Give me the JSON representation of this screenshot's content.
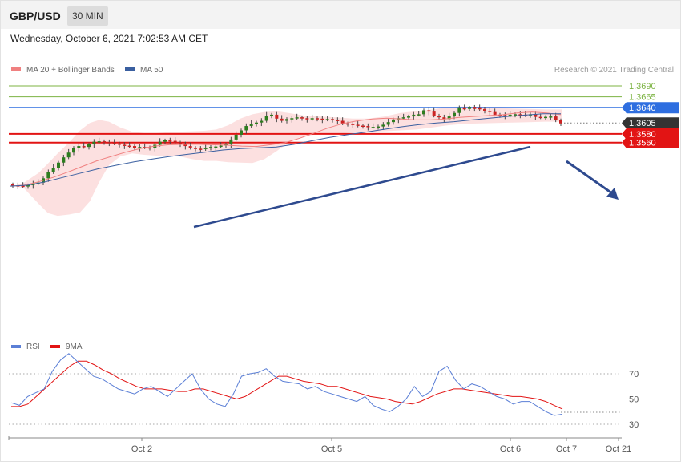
{
  "header": {
    "symbol": "GBP/USD",
    "timeframe": "30 MIN"
  },
  "datetime": "Wednesday, October 6, 2021 7:02:53 AM CET",
  "copyright": "Research © 2021 Trading Central",
  "colors": {
    "bull": "#2e7d1f",
    "bear": "#cc2222",
    "bb_fill": "#fcdada",
    "ma20": "#f08080",
    "ma50": "#3a5fa0",
    "trendline": "#2e4a8f",
    "resistance": "#2e6ee0",
    "target": "#7cb342",
    "support": "#e21414",
    "rsi": "#5b7fd6",
    "rsi_ma": "#e21414"
  },
  "chart_data": [
    {
      "type": "candlestick",
      "title": "GBP/USD",
      "timeframe": "30 MIN",
      "legend": [
        {
          "name": "MA 20 + Bollinger Bands",
          "color": "#f08080"
        },
        {
          "name": "MA 50",
          "color": "#3a5fa0"
        }
      ],
      "legend_position": "top-left",
      "x_ticks": [
        "Oct 2",
        "Oct 5",
        "Oct 6",
        "Oct 7",
        "Oct 21"
      ],
      "ylim": [
        1.3435,
        1.3715
      ],
      "levels": [
        {
          "label": "1.3690",
          "value": 1.369,
          "role": "target"
        },
        {
          "label": "1.3665",
          "value": 1.3665,
          "role": "target"
        },
        {
          "label": "1.3640",
          "value": 1.364,
          "role": "resistance"
        },
        {
          "label": "1.3605",
          "value": 1.3605,
          "role": "last"
        },
        {
          "label": "1.3580",
          "value": 1.358,
          "role": "support"
        },
        {
          "label": "1.3560",
          "value": 1.356,
          "role": "support"
        }
      ],
      "series": [
        {
          "name": "close",
          "values": [
            1.3462,
            1.3461,
            1.346,
            1.3462,
            1.3466,
            1.3468,
            1.3478,
            1.3492,
            1.3502,
            1.3514,
            1.3526,
            1.3537,
            1.3548,
            1.3552,
            1.355,
            1.3556,
            1.3562,
            1.3563,
            1.3561,
            1.356,
            1.3558,
            1.3555,
            1.3553,
            1.3552,
            1.3548,
            1.355,
            1.3549,
            1.3548,
            1.3555,
            1.3562,
            1.3565,
            1.3564,
            1.356,
            1.3556,
            1.3552,
            1.3548,
            1.3546,
            1.3545,
            1.3548,
            1.355,
            1.3551,
            1.3553,
            1.3556,
            1.3567,
            1.3578,
            1.3588,
            1.3598,
            1.3603,
            1.3606,
            1.361,
            1.3622,
            1.3624,
            1.3615,
            1.361,
            1.3614,
            1.3616,
            1.3618,
            1.3616,
            1.3614,
            1.3616,
            1.3615,
            1.3613,
            1.3614,
            1.3612,
            1.361,
            1.3604,
            1.3603,
            1.3601,
            1.3599,
            1.3598,
            1.3596,
            1.3596,
            1.3597,
            1.3601,
            1.3607,
            1.3613,
            1.3616,
            1.3618,
            1.362,
            1.3624,
            1.3625,
            1.3634,
            1.3631,
            1.3622,
            1.3618,
            1.3614,
            1.362,
            1.3628,
            1.3639,
            1.3638,
            1.364,
            1.3639,
            1.3637,
            1.3633,
            1.363,
            1.3624,
            1.3623,
            1.3622,
            1.3624,
            1.3625,
            1.3624,
            1.3623,
            1.3625,
            1.3619,
            1.3618,
            1.3619,
            1.362,
            1.3611,
            1.3604
          ]
        },
        {
          "name": "MA 20",
          "values": [
            1.346,
            1.3462,
            1.347,
            1.348,
            1.3492,
            1.3505,
            1.3518,
            1.3528,
            1.3538,
            1.3546,
            1.3552,
            1.3555,
            1.3556,
            1.3556,
            1.3555,
            1.3554,
            1.3552,
            1.3551,
            1.3555,
            1.356,
            1.357,
            1.3582,
            1.3594,
            1.3604,
            1.361,
            1.3614,
            1.3616,
            1.3614,
            1.3612,
            1.3612,
            1.3614,
            1.3618,
            1.362,
            1.3622,
            1.3624,
            1.3628,
            1.363,
            1.3628,
            1.3624
          ]
        },
        {
          "name": "MA 50",
          "values": [
            1.346,
            1.3462,
            1.347,
            1.348,
            1.349,
            1.35,
            1.3508,
            1.3516,
            1.3522,
            1.3528,
            1.3533,
            1.3538,
            1.3543,
            1.3546,
            1.3548,
            1.355,
            1.3556,
            1.3564,
            1.3572,
            1.3578,
            1.3584,
            1.359,
            1.3596,
            1.3601,
            1.3605,
            1.3608,
            1.3612,
            1.3616,
            1.362,
            1.3623,
            1.3626,
            1.3626
          ]
        }
      ]
    },
    {
      "type": "line",
      "legend": [
        {
          "name": "RSI",
          "color": "#5b7fd6"
        },
        {
          "name": "9MA",
          "color": "#e21414"
        }
      ],
      "legend_position": "top-left",
      "y_ticks": [
        30,
        50,
        70
      ],
      "ylim": [
        19,
        91
      ],
      "series": [
        {
          "name": "RSI",
          "values": [
            47,
            45,
            52,
            55,
            58,
            72,
            81,
            86,
            80,
            74,
            68,
            66,
            62,
            58,
            56,
            54,
            58,
            60,
            56,
            52,
            58,
            64,
            70,
            58,
            50,
            46,
            44,
            54,
            68,
            70,
            71,
            74,
            68,
            64,
            63,
            62,
            58,
            60,
            56,
            54,
            52,
            50,
            48,
            52,
            45,
            42,
            40,
            44,
            50,
            60,
            52,
            56,
            72,
            76,
            65,
            58,
            62,
            60,
            56,
            52,
            50,
            46,
            48,
            48,
            44,
            40,
            37,
            38
          ]
        },
        {
          "name": "9MA",
          "values": [
            44,
            44,
            46,
            52,
            58,
            64,
            70,
            76,
            80,
            80,
            77,
            73,
            70,
            66,
            63,
            60,
            58,
            58,
            58,
            57,
            56,
            56,
            58,
            58,
            56,
            54,
            52,
            50,
            52,
            56,
            60,
            64,
            68,
            68,
            66,
            64,
            63,
            62,
            60,
            60,
            58,
            56,
            54,
            52,
            51,
            50,
            48,
            47,
            46,
            48,
            51,
            54,
            56,
            58,
            58,
            57,
            56,
            55,
            54,
            53,
            52,
            52,
            51,
            50,
            48,
            45,
            42
          ]
        }
      ]
    }
  ]
}
